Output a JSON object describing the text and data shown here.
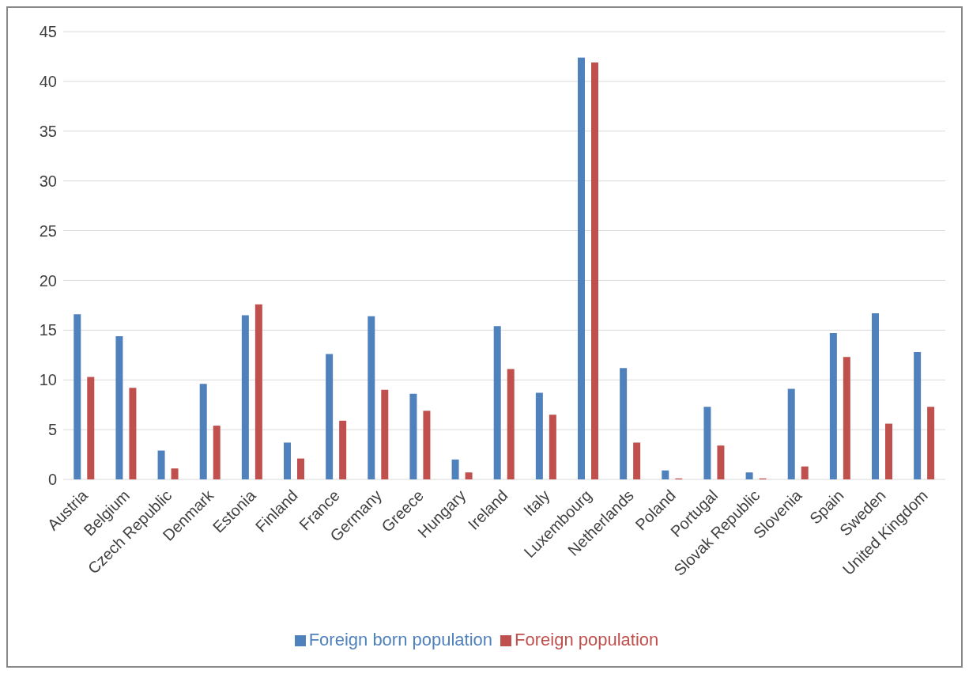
{
  "chart_data": {
    "type": "bar",
    "categories": [
      "Austria",
      "Belgium",
      "Czech Republic",
      "Denmark",
      "Estonia",
      "Finland",
      "France",
      "Germany",
      "Greece",
      "Hungary",
      "Ireland",
      "Italy",
      "Luxembourg",
      "Netherlands",
      "Poland",
      "Portugal",
      "Slovak Republic",
      "Slovenia",
      "Spain",
      "Sweden",
      "United Kingdom"
    ],
    "series": [
      {
        "name": "Foreign born population",
        "color": "#4f81bd",
        "values": [
          16.6,
          14.4,
          2.9,
          9.6,
          16.5,
          3.7,
          12.6,
          16.4,
          8.6,
          2.0,
          15.4,
          8.7,
          42.4,
          11.2,
          0.9,
          7.3,
          0.7,
          9.1,
          14.7,
          16.7,
          12.8
        ]
      },
      {
        "name": "Foreign population",
        "color": "#c0504d",
        "values": [
          10.3,
          9.2,
          1.1,
          5.4,
          17.6,
          2.1,
          5.9,
          9.0,
          6.9,
          0.7,
          11.1,
          6.5,
          41.9,
          3.7,
          0.1,
          3.4,
          0.1,
          1.3,
          12.3,
          5.6,
          7.3
        ]
      }
    ],
    "ylim": [
      0,
      45
    ],
    "yticks": [
      0,
      5,
      10,
      15,
      20,
      25,
      30,
      35,
      40,
      45
    ],
    "grid": "y",
    "legend": "bottom"
  }
}
